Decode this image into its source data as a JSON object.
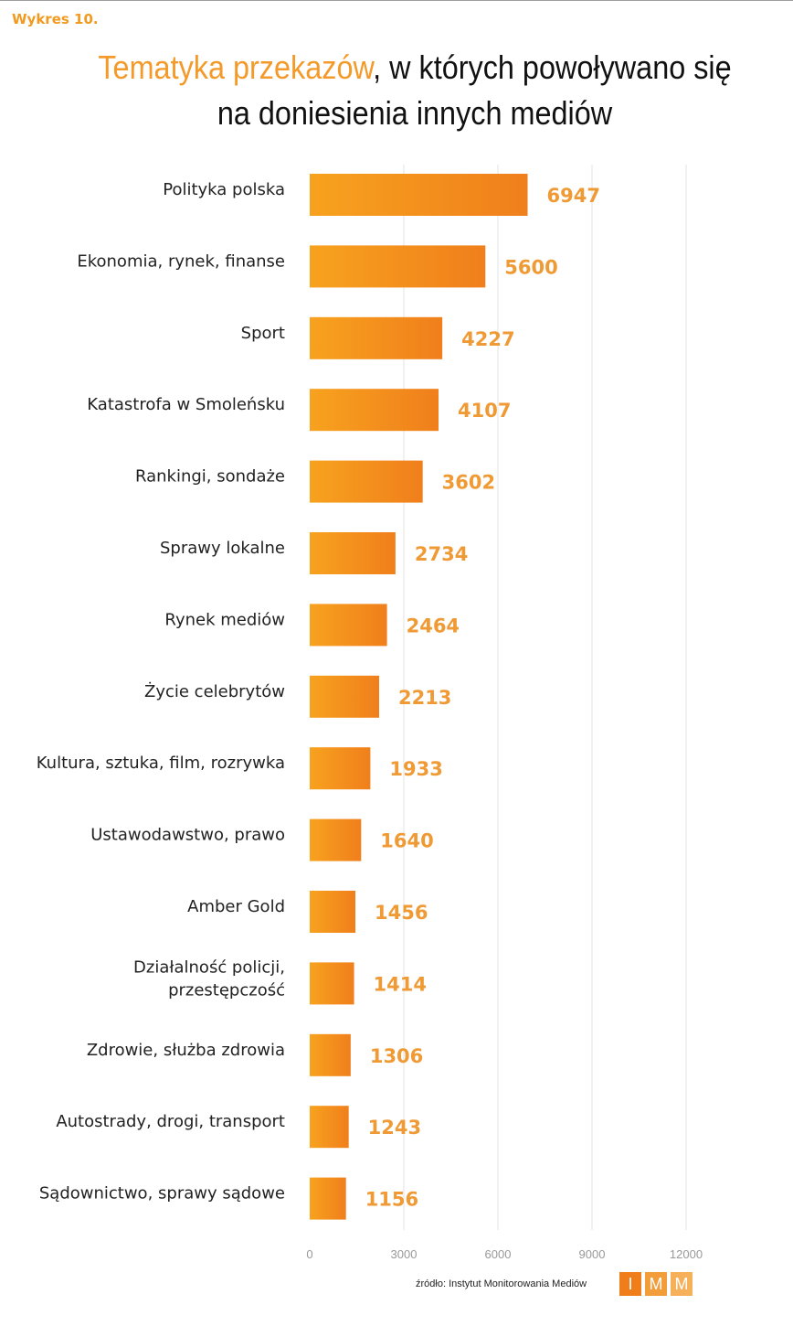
{
  "figure_label": "Wykres 10.",
  "title": {
    "accent": "Tematyka przekazów",
    "rest": ", w których powoływano się",
    "line2": "na doniesienia innych mediów"
  },
  "source": "źródło: Instytut Monitorowania Mediów",
  "logo": [
    "I",
    "M",
    "M"
  ],
  "colors": {
    "accent": "#f39a2a",
    "bar_light": "#f7a21e",
    "bar_dark": "#f07f1c",
    "value_text": "#ef9a34"
  },
  "chart_data": {
    "type": "bar",
    "orientation": "horizontal",
    "categories": [
      [
        "Polityka polska"
      ],
      [
        "Ekonomia, rynek, finanse"
      ],
      [
        "Sport"
      ],
      [
        "Katastrofa w Smoleńsku"
      ],
      [
        "Rankingi, sondaże"
      ],
      [
        "Sprawy lokalne"
      ],
      [
        "Rynek mediów"
      ],
      [
        "Życie celebrytów"
      ],
      [
        "Kultura, sztuka, film, rozrywka"
      ],
      [
        "Ustawodawstwo, prawo"
      ],
      [
        "Amber Gold"
      ],
      [
        "Działalność policji,",
        "przestępczość"
      ],
      [
        "Zdrowie, służba zdrowia"
      ],
      [
        "Autostrady, drogi, transport"
      ],
      [
        "Sądownictwo, sprawy sądowe"
      ]
    ],
    "values": [
      6947,
      5600,
      4227,
      4107,
      3602,
      2734,
      2464,
      2213,
      1933,
      1640,
      1456,
      1414,
      1306,
      1243,
      1156
    ],
    "xlim": [
      0,
      12000
    ],
    "xticks": [
      "0",
      "3000",
      "6000",
      "9000",
      "12000"
    ],
    "grid": true,
    "legend": "none"
  }
}
